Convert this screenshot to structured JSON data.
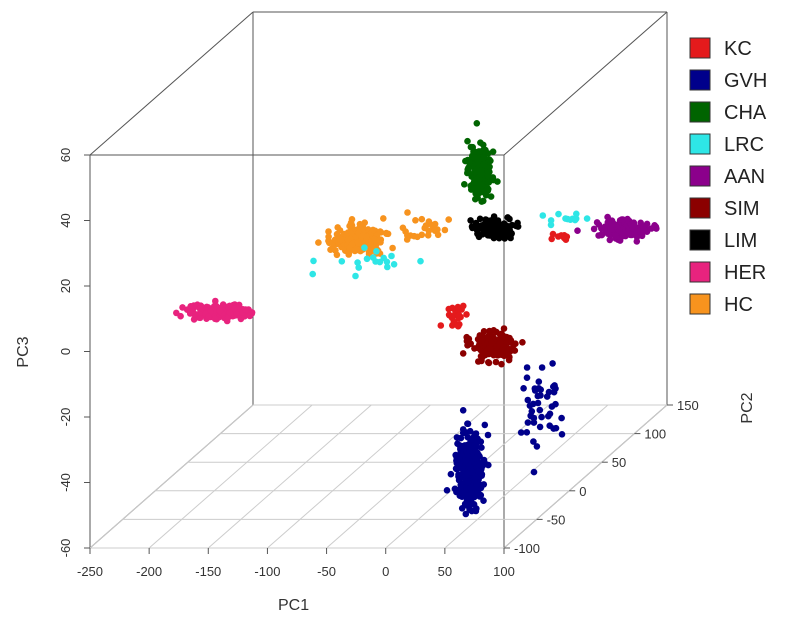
{
  "chart_data": {
    "type": "scatter",
    "title": "",
    "projection": "3d-perspective-box",
    "axes": {
      "x": {
        "label": "PC1",
        "range": [
          -250,
          100
        ],
        "ticks": [
          -250,
          -200,
          -150,
          -100,
          -50,
          0,
          50,
          100
        ]
      },
      "y": {
        "label": "PC2",
        "range": [
          -100,
          150
        ],
        "ticks": [
          -100,
          -50,
          0,
          50,
          100,
          150
        ]
      },
      "z": {
        "label": "PC3",
        "range": [
          -60,
          60
        ],
        "ticks": [
          -60,
          -40,
          -20,
          0,
          20,
          40,
          60
        ]
      }
    },
    "grid_on_floor": true,
    "legend_position": "right",
    "series": [
      {
        "name": "KC",
        "color": "#e41a1c"
      },
      {
        "name": "GVH",
        "color": "#00008b"
      },
      {
        "name": "CHA",
        "color": "#006400"
      },
      {
        "name": "LRC",
        "color": "#2ee6e6"
      },
      {
        "name": "AAN",
        "color": "#8b008b"
      },
      {
        "name": "SIM",
        "color": "#8b0000"
      },
      {
        "name": "LIM",
        "color": "#000000"
      },
      {
        "name": "HER",
        "color": "#e8237e"
      },
      {
        "name": "HC",
        "color": "#f7931e"
      }
    ]
  }
}
